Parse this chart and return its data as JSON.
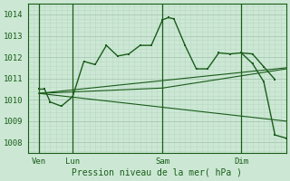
{
  "bg_color": "#cce8d4",
  "grid_color_major": "#a8c8b4",
  "grid_color_minor": "#b8d8c4",
  "line_color": "#1a5c1a",
  "text_color": "#1a5c1a",
  "xlabel_text": "Pression niveau de la mer( hPa )",
  "ylim": [
    1007.5,
    1014.5
  ],
  "yticks": [
    1008,
    1009,
    1010,
    1011,
    1012,
    1013,
    1014
  ],
  "xlim": [
    0,
    23
  ],
  "xtick_labels": [
    "Ven",
    "Lun",
    "Sam",
    "Dim"
  ],
  "xtick_positions": [
    1,
    4,
    12,
    19
  ],
  "vline_positions": [
    1,
    4,
    12,
    19
  ],
  "series_main": {
    "x": [
      1,
      1.5,
      2,
      3,
      4,
      5,
      6,
      7,
      8,
      9,
      10,
      11,
      12,
      12.5,
      13,
      14,
      15,
      16,
      17,
      18,
      19,
      20,
      21,
      22
    ],
    "y": [
      1010.5,
      1010.5,
      1009.9,
      1009.7,
      1010.15,
      1011.8,
      1011.65,
      1012.55,
      1012.05,
      1012.15,
      1012.55,
      1012.55,
      1013.75,
      1013.85,
      1013.8,
      1012.55,
      1011.45,
      1011.45,
      1012.2,
      1012.15,
      1012.2,
      1012.15,
      1011.55,
      1010.95
    ]
  },
  "series_drop": {
    "x": [
      19,
      20,
      21,
      22,
      23
    ],
    "y": [
      1012.2,
      1011.7,
      1010.85,
      1008.35,
      1008.2
    ]
  },
  "trend1": {
    "x": [
      1,
      23
    ],
    "y": [
      1010.3,
      1011.5
    ]
  },
  "trend2": {
    "x": [
      1,
      23
    ],
    "y": [
      1010.3,
      1009.0
    ]
  },
  "trend3": {
    "x": [
      1,
      12,
      23
    ],
    "y": [
      1010.3,
      1010.55,
      1011.45
    ]
  }
}
